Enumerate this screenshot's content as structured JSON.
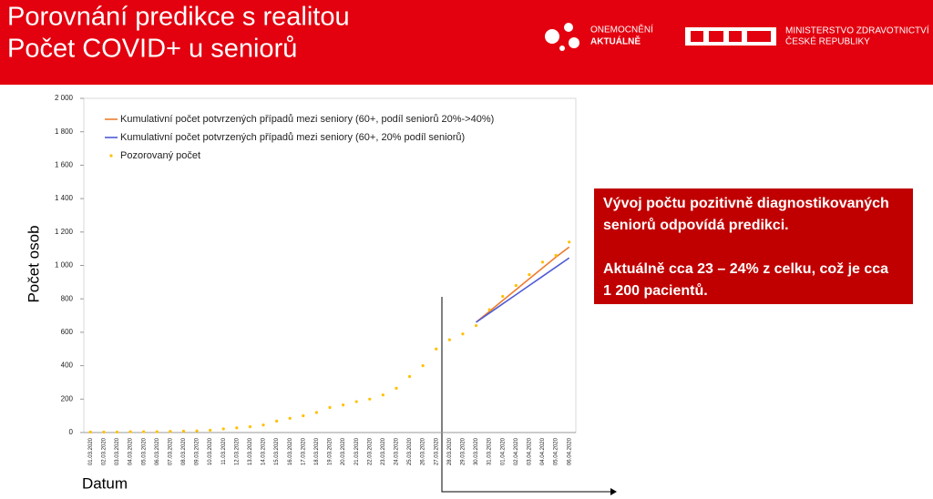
{
  "header": {
    "title_lines": [
      "Porovnání predikce s realitou",
      "Počet COVID+ u seniorů"
    ],
    "logo_left": [
      "ONEMOCNĚNÍ",
      "AKTUÁLNĚ"
    ],
    "logo_right": [
      "MINISTERSTVO ZDRAVOTNICTVÍ",
      "ČESKÉ REPUBLIKY"
    ]
  },
  "callout": {
    "paragraphs": [
      [
        "Vývoj počtu pozitivně diagnostikovaných",
        "seniorů odpovídá predikci."
      ],
      [
        "Aktuálně cca 23 – 24% z celku, což je cca",
        "1 200 pacientů."
      ]
    ]
  },
  "chart_data": {
    "type": "line",
    "x_label": "Datum",
    "y_label": "Počet osob",
    "categories": [
      "01.03.2020",
      "02.03.2020",
      "03.03.2020",
      "04.03.2020",
      "05.03.2020",
      "06.03.2020",
      "07.03.2020",
      "08.03.2020",
      "09.03.2020",
      "10.03.2020",
      "11.03.2020",
      "12.03.2020",
      "13.03.2020",
      "14.03.2020",
      "15.03.2020",
      "16.03.2020",
      "17.03.2020",
      "18.03.2020",
      "19.03.2020",
      "20.03.2020",
      "21.03.2020",
      "22.03.2020",
      "23.03.2020",
      "24.03.2020",
      "25.03.2020",
      "26.03.2020",
      "27.03.2020",
      "28.03.2020",
      "29.03.2020",
      "30.03.2020",
      "31.03.2020",
      "01.04.2020",
      "02.04.2020",
      "03.04.2020",
      "04.04.2020",
      "05.04.2020",
      "06.04.2020"
    ],
    "series": [
      {
        "name": "Kumulativní počet potvrzených případů mezi seniory (60+, podíl seniorů 20%->40%)",
        "color": "#ed7d31",
        "style": "line",
        "values": [
          null,
          null,
          null,
          null,
          null,
          null,
          null,
          null,
          null,
          null,
          null,
          null,
          null,
          null,
          null,
          null,
          null,
          null,
          null,
          null,
          null,
          null,
          null,
          null,
          null,
          null,
          null,
          null,
          null,
          660,
          725,
          790,
          855,
          920,
          985,
          1050,
          1110
        ]
      },
      {
        "name": "Kumulativní počet potvrzených případů mezi seniory (60+, 20% podíl seniorů)",
        "color": "#4f5bd5",
        "style": "line",
        "values": [
          null,
          null,
          null,
          null,
          null,
          null,
          null,
          null,
          null,
          null,
          null,
          null,
          null,
          null,
          null,
          null,
          null,
          null,
          null,
          null,
          null,
          null,
          null,
          null,
          null,
          null,
          null,
          null,
          null,
          660,
          715,
          770,
          825,
          880,
          935,
          990,
          1045
        ]
      },
      {
        "name": "Pozorovaný počet",
        "color": "#ffc000",
        "style": "dots",
        "values": [
          3,
          3,
          3,
          5,
          5,
          5,
          7,
          8,
          10,
          14,
          22,
          28,
          35,
          45,
          68,
          85,
          100,
          120,
          150,
          165,
          185,
          200,
          225,
          265,
          335,
          400,
          500,
          555,
          590,
          640,
          735,
          815,
          880,
          945,
          1020,
          1060,
          1140
        ]
      }
    ],
    "ylim": [
      0,
      2000
    ],
    "yticks": [
      0,
      200,
      400,
      600,
      800,
      {
        "value": 1000,
        "label": "1 000"
      },
      {
        "value": 1200,
        "label": "1 200"
      },
      {
        "value": 1400,
        "label": "1 400"
      },
      {
        "value": 1600,
        "label": "1 600"
      },
      {
        "value": 1800,
        "label": "1 800"
      },
      {
        "value": 2000,
        "label": "2 000"
      }
    ],
    "grid": false
  }
}
